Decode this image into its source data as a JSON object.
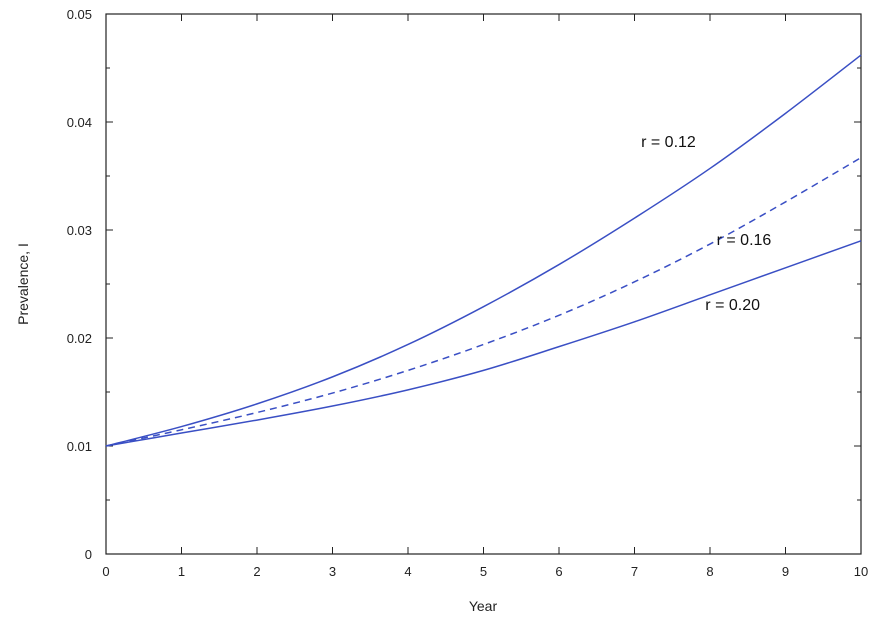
{
  "chart_data": {
    "type": "line",
    "title": "",
    "xlabel": "Year",
    "ylabel": "Prevalence, I",
    "xlim": [
      0,
      10
    ],
    "ylim": [
      0,
      0.05
    ],
    "xticks": [
      0,
      1,
      2,
      3,
      4,
      5,
      6,
      7,
      8,
      9,
      10
    ],
    "xtick_labels": [
      "0",
      "1",
      "2",
      "3",
      "4",
      "5",
      "6",
      "7",
      "8",
      "9",
      "10"
    ],
    "yticks": [
      0,
      0.01,
      0.02,
      0.03,
      0.04,
      0.05
    ],
    "ytick_labels": [
      "0",
      "0.01",
      "0.02",
      "0.03",
      "0.04",
      "0.05"
    ],
    "grid": false,
    "line_color": "#3a4fc4",
    "x": [
      0,
      1,
      2,
      3,
      4,
      5,
      6,
      7,
      8,
      9,
      10
    ],
    "series": [
      {
        "annotation": "r = 0.12",
        "style": "solid",
        "values": [
          0.01,
          0.0118,
          0.0139,
          0.0164,
          0.0194,
          0.0229,
          0.0268,
          0.0311,
          0.0357,
          0.0408,
          0.0462
        ],
        "annotation_at": [
          7.45,
          0.0377
        ]
      },
      {
        "annotation": "r = 0.16",
        "style": "dashed",
        "values": [
          0.01,
          0.0115,
          0.0131,
          0.0149,
          0.017,
          0.0194,
          0.0221,
          0.0252,
          0.0287,
          0.0326,
          0.0367
        ],
        "annotation_at": [
          8.45,
          0.0286
        ]
      },
      {
        "annotation": "r = 0.20",
        "style": "solid",
        "values": [
          0.01,
          0.0112,
          0.0124,
          0.0137,
          0.0152,
          0.017,
          0.0192,
          0.0215,
          0.024,
          0.0265,
          0.029
        ],
        "annotation_at": [
          8.3,
          0.0226
        ]
      }
    ]
  }
}
